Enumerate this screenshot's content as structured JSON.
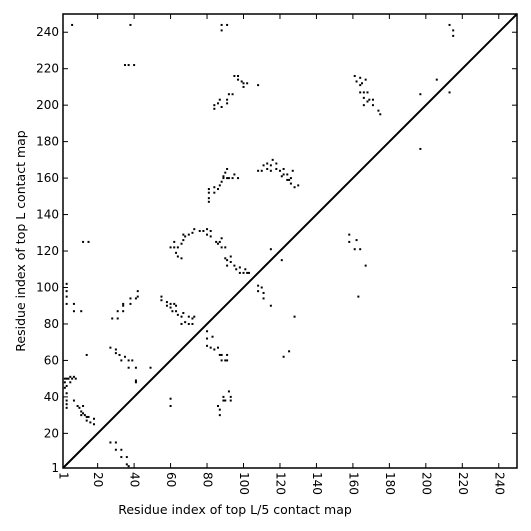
{
  "chart_data": {
    "type": "scatter",
    "title": "",
    "xlabel": "Residue index of top L/5 contact map",
    "ylabel": "Residue index of top L contact map",
    "xlim": [
      1,
      250
    ],
    "ylim": [
      1,
      250
    ],
    "x_ticks": [
      1,
      20,
      40,
      60,
      80,
      100,
      120,
      140,
      160,
      180,
      200,
      220,
      240
    ],
    "y_ticks": [
      1,
      20,
      40,
      60,
      80,
      100,
      120,
      140,
      160,
      180,
      200,
      220,
      240
    ],
    "x_tick_labels": [
      "1",
      "20",
      "40",
      "60",
      "80",
      "100",
      "120",
      "140",
      "160",
      "180",
      "200",
      "220",
      "240"
    ],
    "y_tick_labels": [
      "1",
      "20",
      "40",
      "60",
      "80",
      "100",
      "120",
      "140",
      "160",
      "180",
      "200",
      "220",
      "240"
    ],
    "x_tick_rotation": 90,
    "grid": false,
    "legend": "none",
    "diagonal_line": {
      "from": [
        1,
        1
      ],
      "to": [
        250,
        250
      ],
      "color": "#000000"
    },
    "marker_color": "#000000",
    "marker_shape": "square",
    "series": [
      {
        "values": [
          [
            2,
            50
          ],
          [
            2,
            48
          ],
          [
            2,
            45
          ],
          [
            3,
            50
          ],
          [
            3,
            46
          ],
          [
            3,
            42
          ],
          [
            3,
            38
          ],
          [
            3,
            36
          ],
          [
            3,
            34
          ],
          [
            4,
            50
          ],
          [
            5,
            51
          ],
          [
            5,
            48
          ],
          [
            6,
            50
          ],
          [
            7,
            51
          ],
          [
            7,
            38
          ],
          [
            8,
            50
          ],
          [
            9,
            35
          ],
          [
            10,
            34
          ],
          [
            11,
            32
          ],
          [
            11,
            30
          ],
          [
            12,
            35
          ],
          [
            12,
            31
          ],
          [
            13,
            30
          ],
          [
            14,
            29
          ],
          [
            14,
            27
          ],
          [
            15,
            29
          ],
          [
            16,
            26
          ],
          [
            18,
            28
          ],
          [
            18,
            25
          ],
          [
            3,
            102
          ],
          [
            3,
            98
          ],
          [
            3,
            95
          ],
          [
            3,
            91
          ],
          [
            7,
            91
          ],
          [
            7,
            87
          ],
          [
            11,
            87
          ],
          [
            12,
            125
          ],
          [
            15,
            125
          ],
          [
            14,
            63
          ],
          [
            6,
            244
          ],
          [
            38,
            244
          ],
          [
            35,
            222
          ],
          [
            37,
            222
          ],
          [
            40,
            222
          ],
          [
            27,
            15
          ],
          [
            30,
            15
          ],
          [
            30,
            11
          ],
          [
            33,
            11
          ],
          [
            33,
            7
          ],
          [
            36,
            7
          ],
          [
            36,
            3
          ],
          [
            37,
            2
          ],
          [
            27,
            67
          ],
          [
            30,
            66
          ],
          [
            30,
            64
          ],
          [
            32,
            63
          ],
          [
            35,
            62
          ],
          [
            33,
            60
          ],
          [
            37,
            60
          ],
          [
            39,
            60
          ],
          [
            37,
            56
          ],
          [
            41,
            56
          ],
          [
            41,
            49
          ],
          [
            41,
            48
          ],
          [
            49,
            56
          ],
          [
            28,
            83
          ],
          [
            31,
            83
          ],
          [
            31,
            87
          ],
          [
            34,
            87
          ],
          [
            34,
            91
          ],
          [
            34,
            90
          ],
          [
            38,
            91
          ],
          [
            38,
            94
          ],
          [
            41,
            94
          ],
          [
            42,
            98
          ],
          [
            42,
            95
          ],
          [
            55,
            95
          ],
          [
            55,
            93
          ],
          [
            58,
            92
          ],
          [
            58,
            90
          ],
          [
            60,
            91
          ],
          [
            60,
            89
          ],
          [
            61,
            87
          ],
          [
            62,
            91
          ],
          [
            63,
            90
          ],
          [
            63,
            87
          ],
          [
            64,
            85
          ],
          [
            66,
            84
          ],
          [
            66,
            80
          ],
          [
            67,
            86
          ],
          [
            68,
            81
          ],
          [
            70,
            84
          ],
          [
            70,
            80
          ],
          [
            72,
            83
          ],
          [
            72,
            80
          ],
          [
            73,
            84
          ],
          [
            60,
            39
          ],
          [
            60,
            35
          ],
          [
            60,
            122
          ],
          [
            62,
            122
          ],
          [
            62,
            125
          ],
          [
            63,
            119
          ],
          [
            64,
            117
          ],
          [
            64,
            122
          ],
          [
            66,
            116
          ],
          [
            66,
            124
          ],
          [
            67,
            126
          ],
          [
            67,
            129
          ],
          [
            68,
            128
          ],
          [
            70,
            129
          ],
          [
            72,
            130
          ],
          [
            73,
            132
          ],
          [
            76,
            131
          ],
          [
            78,
            131
          ],
          [
            80,
            132
          ],
          [
            80,
            129
          ],
          [
            82,
            131
          ],
          [
            82,
            128
          ],
          [
            80,
            76
          ],
          [
            80,
            72
          ],
          [
            80,
            68
          ],
          [
            82,
            67
          ],
          [
            83,
            73
          ],
          [
            84,
            66
          ],
          [
            86,
            67
          ],
          [
            87,
            63
          ],
          [
            88,
            63
          ],
          [
            88,
            60
          ],
          [
            90,
            60
          ],
          [
            91,
            63
          ],
          [
            91,
            60
          ],
          [
            86,
            35
          ],
          [
            87,
            33
          ],
          [
            87,
            30
          ],
          [
            89,
            40
          ],
          [
            89,
            38
          ],
          [
            90,
            38
          ],
          [
            92,
            43
          ],
          [
            93,
            40
          ],
          [
            93,
            38
          ],
          [
            85,
            125
          ],
          [
            86,
            124
          ],
          [
            87,
            125
          ],
          [
            88,
            122
          ],
          [
            88,
            127
          ],
          [
            90,
            122
          ],
          [
            90,
            116
          ],
          [
            91,
            115
          ],
          [
            91,
            112
          ],
          [
            93,
            117
          ],
          [
            93,
            114
          ],
          [
            95,
            112
          ],
          [
            96,
            110
          ],
          [
            98,
            111
          ],
          [
            98,
            108
          ],
          [
            100,
            108
          ],
          [
            101,
            110
          ],
          [
            102,
            108
          ],
          [
            103,
            108
          ],
          [
            81,
            147
          ],
          [
            81,
            149
          ],
          [
            81,
            152
          ],
          [
            81,
            154
          ],
          [
            84,
            152
          ],
          [
            84,
            155
          ],
          [
            86,
            154
          ],
          [
            87,
            156
          ],
          [
            88,
            158
          ],
          [
            89,
            160
          ],
          [
            89,
            161
          ],
          [
            90,
            163
          ],
          [
            91,
            165
          ],
          [
            91,
            160
          ],
          [
            92,
            160
          ],
          [
            94,
            160
          ],
          [
            95,
            162
          ],
          [
            97,
            160
          ],
          [
            84,
            200
          ],
          [
            84,
            198
          ],
          [
            86,
            201
          ],
          [
            87,
            203
          ],
          [
            88,
            199
          ],
          [
            88,
            244
          ],
          [
            88,
            241
          ],
          [
            91,
            244
          ],
          [
            91,
            203
          ],
          [
            91,
            201
          ],
          [
            92,
            206
          ],
          [
            94,
            206
          ],
          [
            95,
            216
          ],
          [
            97,
            216
          ],
          [
            97,
            214
          ],
          [
            99,
            213
          ],
          [
            100,
            210
          ],
          [
            100,
            212
          ],
          [
            102,
            212
          ],
          [
            108,
            211
          ],
          [
            108,
            101
          ],
          [
            108,
            98
          ],
          [
            110,
            100
          ],
          [
            111,
            97
          ],
          [
            111,
            94
          ],
          [
            115,
            90
          ],
          [
            121,
            115
          ],
          [
            122,
            62
          ],
          [
            125,
            65
          ],
          [
            128,
            84
          ],
          [
            108,
            164
          ],
          [
            110,
            164
          ],
          [
            111,
            167
          ],
          [
            113,
            165
          ],
          [
            113,
            168
          ],
          [
            115,
            167
          ],
          [
            115,
            164
          ],
          [
            116,
            170
          ],
          [
            118,
            168
          ],
          [
            118,
            165
          ],
          [
            120,
            164
          ],
          [
            121,
            161
          ],
          [
            122,
            165
          ],
          [
            122,
            162
          ],
          [
            124,
            159
          ],
          [
            124,
            162
          ],
          [
            125,
            159
          ],
          [
            126,
            160
          ],
          [
            126,
            157
          ],
          [
            127,
            164
          ],
          [
            128,
            155
          ],
          [
            130,
            156
          ],
          [
            115,
            121
          ],
          [
            158,
            129
          ],
          [
            158,
            125
          ],
          [
            161,
            121
          ],
          [
            164,
            121
          ],
          [
            162,
            126
          ],
          [
            163,
            95
          ],
          [
            167,
            112
          ],
          [
            161,
            216
          ],
          [
            162,
            213
          ],
          [
            164,
            215
          ],
          [
            164,
            211
          ],
          [
            165,
            212
          ],
          [
            164,
            207
          ],
          [
            166,
            207
          ],
          [
            166,
            204
          ],
          [
            166,
            200
          ],
          [
            167,
            214
          ],
          [
            168,
            207
          ],
          [
            169,
            203
          ],
          [
            171,
            200
          ],
          [
            171,
            203
          ],
          [
            174,
            197
          ],
          [
            175,
            195
          ],
          [
            168,
            202
          ],
          [
            197,
            206
          ],
          [
            197,
            176
          ],
          [
            206,
            214
          ],
          [
            213,
            244
          ],
          [
            213,
            207
          ],
          [
            215,
            241
          ],
          [
            215,
            238
          ]
        ]
      }
    ]
  }
}
